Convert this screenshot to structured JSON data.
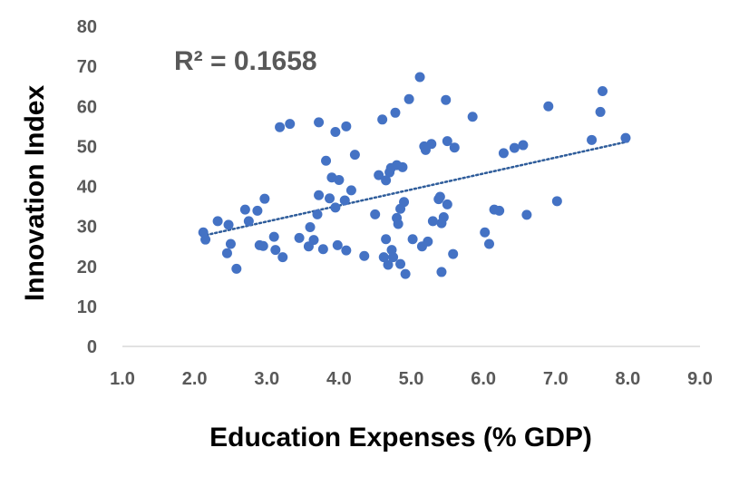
{
  "chart_data": {
    "type": "scatter",
    "title": "",
    "xlabel": "Education Expenses (% GDP)",
    "ylabel": "Innovation Index",
    "annotation": "R² = 0.1658",
    "xlim": [
      1.0,
      9.0
    ],
    "ylim": [
      0,
      80
    ],
    "x_ticks": [
      "1.0",
      "2.0",
      "3.0",
      "4.0",
      "5.0",
      "6.0",
      "7.0",
      "8.0",
      "9.0"
    ],
    "y_ticks": [
      "0",
      "10",
      "20",
      "30",
      "40",
      "50",
      "60",
      "70",
      "80"
    ],
    "grid": false,
    "legend": "none",
    "marker_color": "#4472C4",
    "trendline": {
      "type": "linear",
      "style": "dotted",
      "color": "#2E5C9A",
      "from": [
        2.1,
        27.6
      ],
      "to": [
        8.0,
        51.2
      ]
    },
    "points": [
      [
        2.12,
        28.5
      ],
      [
        2.15,
        26.7
      ],
      [
        2.32,
        31.3
      ],
      [
        2.45,
        23.3
      ],
      [
        2.47,
        30.4
      ],
      [
        2.5,
        25.6
      ],
      [
        2.58,
        19.4
      ],
      [
        2.7,
        34.2
      ],
      [
        2.75,
        31.3
      ],
      [
        2.87,
        33.9
      ],
      [
        2.9,
        25.3
      ],
      [
        2.95,
        25.1
      ],
      [
        2.97,
        36.9
      ],
      [
        3.1,
        27.4
      ],
      [
        3.12,
        24.1
      ],
      [
        3.18,
        54.8
      ],
      [
        3.22,
        22.3
      ],
      [
        3.32,
        55.6
      ],
      [
        3.45,
        27.1
      ],
      [
        3.58,
        25.0
      ],
      [
        3.6,
        29.8
      ],
      [
        3.65,
        26.6
      ],
      [
        3.7,
        33.0
      ],
      [
        3.72,
        37.8
      ],
      [
        3.72,
        56.0
      ],
      [
        3.78,
        24.3
      ],
      [
        3.82,
        46.4
      ],
      [
        3.87,
        37.0
      ],
      [
        3.9,
        42.2
      ],
      [
        3.95,
        53.6
      ],
      [
        3.95,
        34.7
      ],
      [
        3.98,
        25.3
      ],
      [
        4.0,
        41.6
      ],
      [
        4.08,
        36.5
      ],
      [
        4.1,
        24.0
      ],
      [
        4.1,
        55.0
      ],
      [
        4.17,
        39.0
      ],
      [
        4.22,
        47.9
      ],
      [
        4.35,
        22.6
      ],
      [
        4.5,
        33.0
      ],
      [
        4.55,
        42.8
      ],
      [
        4.6,
        56.7
      ],
      [
        4.62,
        22.3
      ],
      [
        4.65,
        26.8
      ],
      [
        4.65,
        41.5
      ],
      [
        4.68,
        20.4
      ],
      [
        4.7,
        43.5
      ],
      [
        4.72,
        44.6
      ],
      [
        4.73,
        24.1
      ],
      [
        4.75,
        22.3
      ],
      [
        4.78,
        58.4
      ],
      [
        4.8,
        45.3
      ],
      [
        4.8,
        32.1
      ],
      [
        4.82,
        30.6
      ],
      [
        4.85,
        34.4
      ],
      [
        4.85,
        20.6
      ],
      [
        4.88,
        44.8
      ],
      [
        4.9,
        36.1
      ],
      [
        4.92,
        18.1
      ],
      [
        4.97,
        61.8
      ],
      [
        5.02,
        26.8
      ],
      [
        5.12,
        67.3
      ],
      [
        5.15,
        25.0
      ],
      [
        5.18,
        50.0
      ],
      [
        5.2,
        49.1
      ],
      [
        5.23,
        26.2
      ],
      [
        5.28,
        50.6
      ],
      [
        5.3,
        31.3
      ],
      [
        5.38,
        36.8
      ],
      [
        5.4,
        37.4
      ],
      [
        5.42,
        18.6
      ],
      [
        5.42,
        30.8
      ],
      [
        5.45,
        32.3
      ],
      [
        5.48,
        61.6
      ],
      [
        5.5,
        35.5
      ],
      [
        5.5,
        51.3
      ],
      [
        5.58,
        23.1
      ],
      [
        5.6,
        49.7
      ],
      [
        5.85,
        57.4
      ],
      [
        6.02,
        28.5
      ],
      [
        6.08,
        25.6
      ],
      [
        6.15,
        34.2
      ],
      [
        6.22,
        33.9
      ],
      [
        6.28,
        48.3
      ],
      [
        6.43,
        49.6
      ],
      [
        6.55,
        50.3
      ],
      [
        6.6,
        32.9
      ],
      [
        6.9,
        60.0
      ],
      [
        7.02,
        36.3
      ],
      [
        7.5,
        51.6
      ],
      [
        7.62,
        58.6
      ],
      [
        7.65,
        63.8
      ],
      [
        7.97,
        52.1
      ]
    ]
  }
}
